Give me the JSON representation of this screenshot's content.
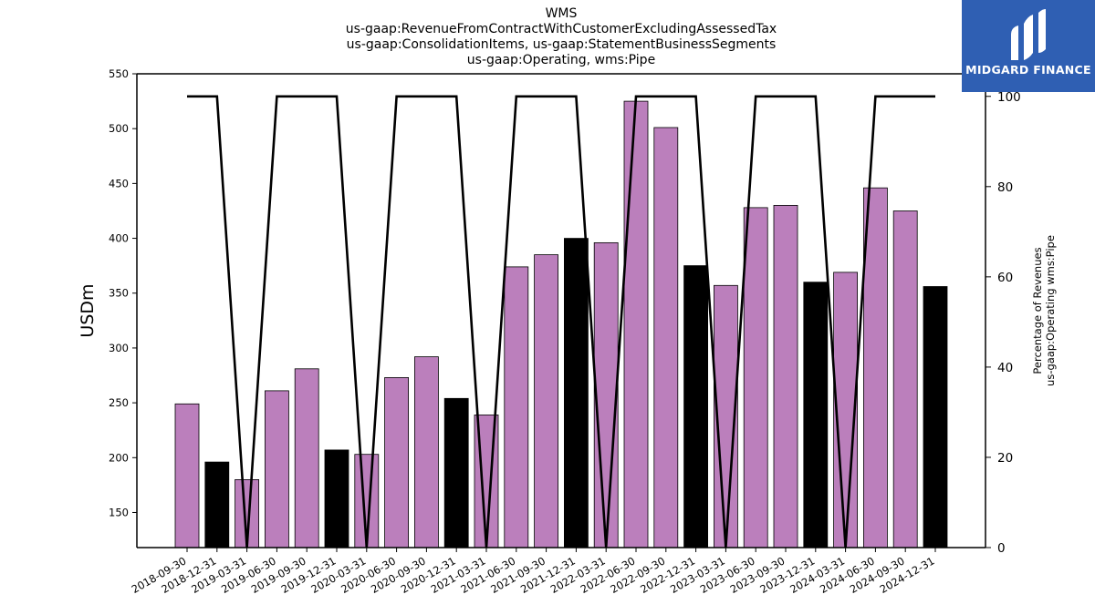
{
  "chart_data": {
    "type": "bar",
    "title_lines": [
      "WMS",
      "us-gaap:RevenueFromContractWithCustomerExcludingAssessedTax",
      "us-gaap:ConsolidationItems, us-gaap:StatementBusinessSegments",
      "us-gaap:Operating, wms:Pipe"
    ],
    "ylabel": "USDm",
    "y2label_lines": [
      "Percentage of Revenues",
      "us-gaap:Operating wms:Pipe"
    ],
    "ylim": [
      118,
      550
    ],
    "y_ticks": [
      150,
      200,
      250,
      300,
      350,
      400,
      450,
      500,
      550
    ],
    "y2lim": [
      0,
      105
    ],
    "y2_ticks": [
      0,
      20,
      40,
      60,
      80,
      100
    ],
    "categories": [
      "2018-09-30",
      "2018-12-31",
      "2019-03-31",
      "2019-06-30",
      "2019-09-30",
      "2019-12-31",
      "2020-03-31",
      "2020-06-30",
      "2020-09-30",
      "2020-12-31",
      "2021-03-31",
      "2021-06-30",
      "2021-09-30",
      "2021-12-31",
      "2022-03-31",
      "2022-06-30",
      "2022-09-30",
      "2022-12-31",
      "2023-03-31",
      "2023-06-30",
      "2023-09-30",
      "2023-12-31",
      "2024-03-31",
      "2024-06-30",
      "2024-09-30",
      "2024-12-31"
    ],
    "values": [
      249,
      196,
      180,
      261,
      281,
      207,
      203,
      273,
      292,
      254,
      239,
      374,
      385,
      400,
      396,
      525,
      501,
      375,
      357,
      428,
      430,
      360,
      369,
      446,
      425,
      356
    ],
    "bar_colors": [
      "#bb7fbc",
      "#000000",
      "#bb7fbc",
      "#bb7fbc",
      "#bb7fbc",
      "#000000",
      "#bb7fbc",
      "#bb7fbc",
      "#bb7fbc",
      "#000000",
      "#bb7fbc",
      "#bb7fbc",
      "#bb7fbc",
      "#000000",
      "#bb7fbc",
      "#bb7fbc",
      "#bb7fbc",
      "#000000",
      "#bb7fbc",
      "#bb7fbc",
      "#bb7fbc",
      "#000000",
      "#bb7fbc",
      "#bb7fbc",
      "#bb7fbc",
      "#000000"
    ],
    "percentage_line": [
      100,
      100,
      0,
      100,
      100,
      100,
      0,
      100,
      100,
      100,
      0,
      100,
      100,
      100,
      0,
      100,
      100,
      100,
      0,
      100,
      100,
      100,
      0,
      100,
      100,
      100
    ],
    "grid": false
  },
  "logo": {
    "text": "MIDGARD FINANCE",
    "background": "#2f5fb3"
  }
}
